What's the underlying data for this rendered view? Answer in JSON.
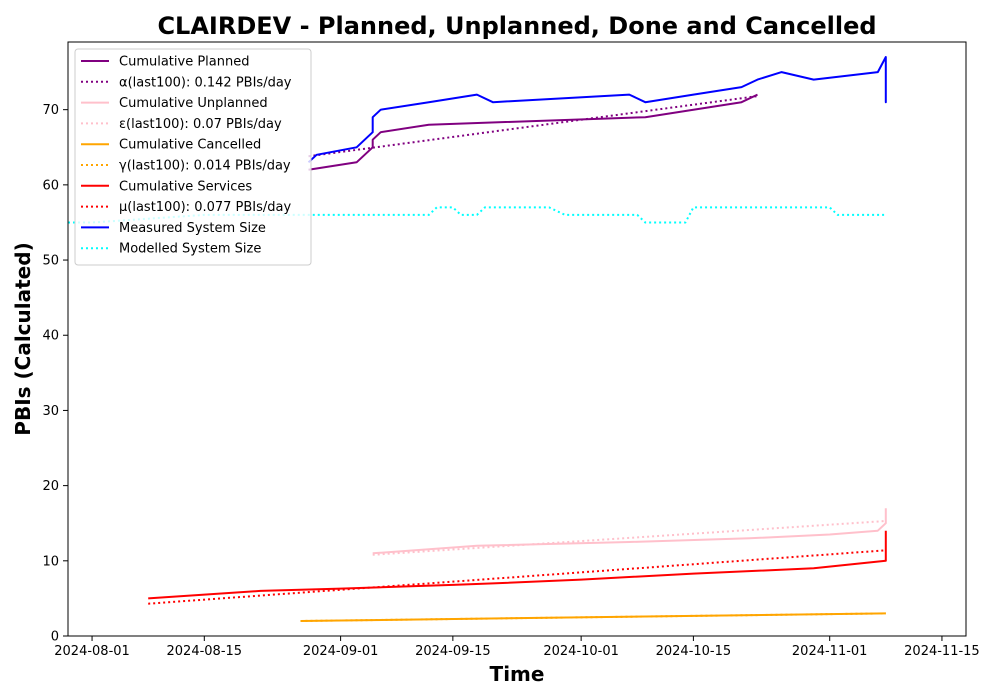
{
  "chart_data": {
    "type": "line",
    "title": "CLAIRDEV - Planned, Unplanned, Done  and Cancelled",
    "xlabel": "Time",
    "ylabel": "PBIs (Calculated)",
    "xlim": [
      "2024-07-29",
      "2024-11-18"
    ],
    "ylim": [
      0,
      79
    ],
    "x_ticks": [
      "2024-08-01",
      "2024-08-15",
      "2024-09-01",
      "2024-09-15",
      "2024-10-01",
      "2024-10-15",
      "2024-11-01",
      "2024-11-15"
    ],
    "y_ticks": [
      0,
      10,
      20,
      30,
      40,
      50,
      60,
      70
    ],
    "grid": false,
    "legend_position": "top-left",
    "series": [
      {
        "name": "Cumulative Planned",
        "color": "#800080",
        "dash": "solid",
        "points": [
          [
            "2024-08-28",
            62
          ],
          [
            "2024-09-03",
            63
          ],
          [
            "2024-09-05",
            65
          ],
          [
            "2024-09-05",
            66
          ],
          [
            "2024-09-06",
            67
          ],
          [
            "2024-09-12",
            68
          ],
          [
            "2024-10-09",
            69
          ],
          [
            "2024-10-15",
            70
          ],
          [
            "2024-10-21",
            71
          ],
          [
            "2024-10-23",
            72
          ]
        ]
      },
      {
        "name": "α(last100): 0.142 PBIs/day",
        "color": "#800080",
        "dash": "dotted",
        "points": [
          [
            "2024-08-28",
            63.8
          ],
          [
            "2024-10-23",
            71.8
          ]
        ]
      },
      {
        "name": "Cumulative Unplanned",
        "color": "#ffc0cb",
        "dash": "solid",
        "points": [
          [
            "2024-09-05",
            11
          ],
          [
            "2024-09-18",
            12
          ],
          [
            "2024-10-07",
            12.5
          ],
          [
            "2024-10-22",
            13
          ],
          [
            "2024-11-01",
            13.5
          ],
          [
            "2024-11-07",
            14
          ],
          [
            "2024-11-08",
            15
          ],
          [
            "2024-11-08",
            17
          ]
        ]
      },
      {
        "name": "ε(last100): 0.07 PBIs/day",
        "color": "#ffc0cb",
        "dash": "dotted",
        "points": [
          [
            "2024-09-05",
            10.8
          ],
          [
            "2024-11-08",
            15.3
          ]
        ]
      },
      {
        "name": "Cumulative Cancelled",
        "color": "#ffa500",
        "dash": "solid",
        "points": [
          [
            "2024-08-27",
            2
          ],
          [
            "2024-11-08",
            3
          ]
        ]
      },
      {
        "name": "γ(last100): 0.014 PBIs/day",
        "color": "#ffa500",
        "dash": "dotted",
        "points": [
          [
            "2024-08-27",
            2
          ],
          [
            "2024-11-08",
            3
          ]
        ]
      },
      {
        "name": "Cumulative Services",
        "color": "#ff0000",
        "dash": "solid",
        "points": [
          [
            "2024-08-08",
            5
          ],
          [
            "2024-08-22",
            6
          ],
          [
            "2024-09-01",
            6.3
          ],
          [
            "2024-09-15",
            6.8
          ],
          [
            "2024-09-20",
            7
          ],
          [
            "2024-10-01",
            7.5
          ],
          [
            "2024-10-15",
            8.3
          ],
          [
            "2024-10-30",
            9
          ],
          [
            "2024-11-08",
            10
          ],
          [
            "2024-11-08",
            14
          ]
        ]
      },
      {
        "name": "μ(last100): 0.077 PBIs/day",
        "color": "#ff0000",
        "dash": "dotted",
        "points": [
          [
            "2024-08-08",
            4.3
          ],
          [
            "2024-11-08",
            11.4
          ]
        ]
      },
      {
        "name": "Measured System Size",
        "color": "#0000ff",
        "dash": "solid",
        "points": [
          [
            "2024-08-28",
            63
          ],
          [
            "2024-08-29",
            64
          ],
          [
            "2024-09-03",
            65
          ],
          [
            "2024-09-04",
            66
          ],
          [
            "2024-09-05",
            67
          ],
          [
            "2024-09-05",
            69
          ],
          [
            "2024-09-06",
            70
          ],
          [
            "2024-09-12",
            71
          ],
          [
            "2024-09-18",
            72
          ],
          [
            "2024-09-20",
            71
          ],
          [
            "2024-10-07",
            72
          ],
          [
            "2024-10-09",
            71
          ],
          [
            "2024-10-15",
            72
          ],
          [
            "2024-10-21",
            73
          ],
          [
            "2024-10-23",
            74
          ],
          [
            "2024-10-26",
            75
          ],
          [
            "2024-10-30",
            74
          ],
          [
            "2024-11-07",
            75
          ],
          [
            "2024-11-08",
            77
          ],
          [
            "2024-11-08",
            71
          ],
          [
            "2024-11-08",
            72
          ]
        ]
      },
      {
        "name": "Modelled System Size",
        "color": "#00ffff",
        "dash": "dotted",
        "points": [
          [
            "2024-07-29",
            55
          ],
          [
            "2024-08-01",
            55
          ],
          [
            "2024-08-15",
            56
          ],
          [
            "2024-09-12",
            56
          ],
          [
            "2024-09-13",
            57
          ],
          [
            "2024-09-15",
            57
          ],
          [
            "2024-09-16",
            56
          ],
          [
            "2024-09-18",
            56
          ],
          [
            "2024-09-19",
            57
          ],
          [
            "2024-09-27",
            57
          ],
          [
            "2024-09-29",
            56
          ],
          [
            "2024-10-08",
            56
          ],
          [
            "2024-10-09",
            55
          ],
          [
            "2024-10-14",
            55
          ],
          [
            "2024-10-15",
            57
          ],
          [
            "2024-11-01",
            57
          ],
          [
            "2024-11-02",
            56
          ],
          [
            "2024-11-08",
            56
          ]
        ]
      }
    ]
  }
}
